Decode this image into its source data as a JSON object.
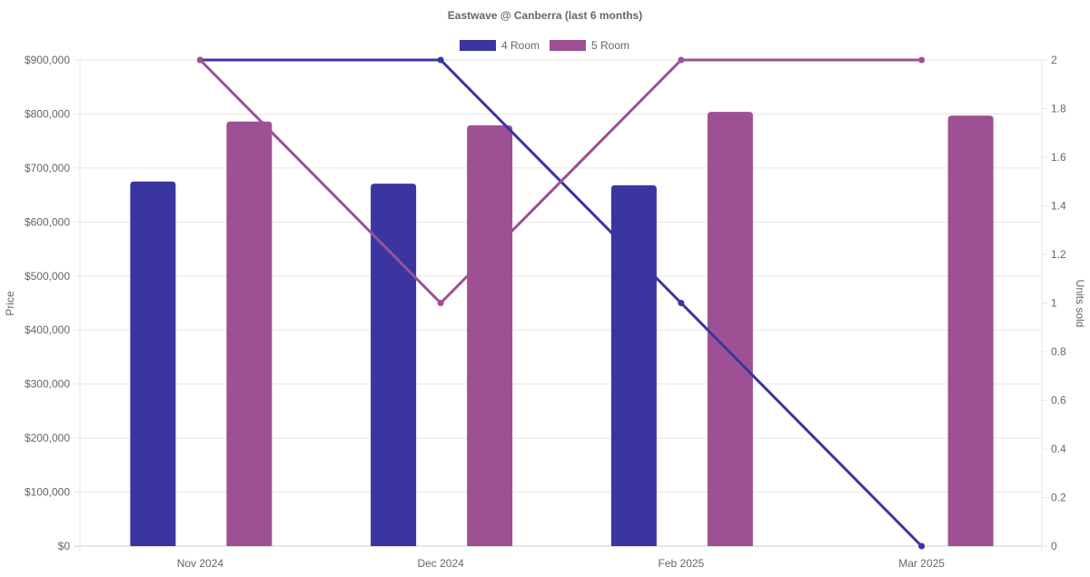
{
  "chart_data": {
    "type": "bar",
    "title": "Eastwave @ Canberra (last 6 months)",
    "categories": [
      "Nov 2024",
      "Dec 2024",
      "Feb 2025",
      "Mar 2025"
    ],
    "ylabel": "Price",
    "y2label": "Units sold",
    "ylim": [
      0,
      900000
    ],
    "y2lim": [
      0,
      2
    ],
    "yticks": [
      "$0",
      "$100,000",
      "$200,000",
      "$300,000",
      "$400,000",
      "$500,000",
      "$600,000",
      "$700,000",
      "$800,000",
      "$900,000"
    ],
    "y2ticks": [
      "0",
      "0.2",
      "0.4",
      "0.6",
      "0.8",
      "1",
      "1.2",
      "1.4",
      "1.6",
      "1.8",
      "2"
    ],
    "grid": true,
    "legend_position": "top",
    "bar_series": [
      {
        "name": "4 Room",
        "color": "#3a35a0",
        "values": [
          675000,
          671000,
          668000,
          null
        ]
      },
      {
        "name": "5 Room",
        "color": "#9e5094",
        "values": [
          786000,
          779000,
          804000,
          797000
        ]
      }
    ],
    "line_series": [
      {
        "name": "4 Room",
        "color": "#3a35a0",
        "axis": "right",
        "values": [
          2,
          2,
          1,
          0
        ]
      },
      {
        "name": "5 Room",
        "color": "#9e5094",
        "axis": "right",
        "values": [
          2,
          1,
          2,
          2
        ]
      }
    ]
  }
}
